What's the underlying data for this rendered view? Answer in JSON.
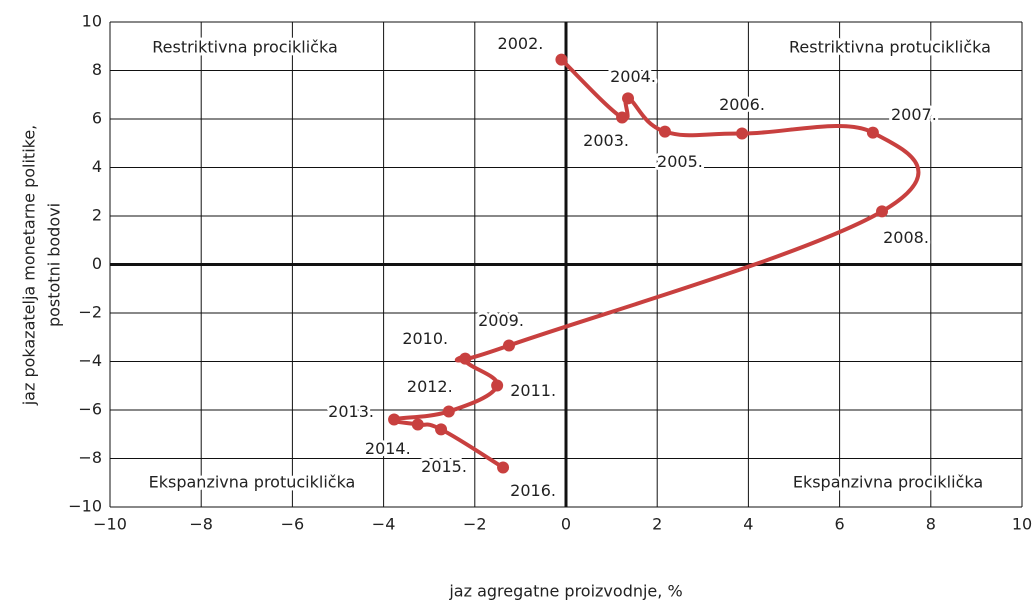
{
  "chart_data": {
    "type": "line",
    "x_label": "jaz agregatne proizvodnje, %",
    "y_label": [
      "jaz pokazatelja monetarne politike,",
      "postotni bodovi"
    ],
    "series": [
      {
        "color": "#c8403f",
        "x": [
          -0.1,
          1.23,
          1.36,
          2.17,
          3.86,
          6.73,
          6.93,
          -1.25,
          -2.21,
          -1.51,
          -2.57,
          -3.77,
          -3.25,
          -2.74,
          -1.38
        ],
        "values": [
          8.45,
          6.06,
          6.85,
          5.48,
          5.4,
          5.44,
          2.19,
          -3.34,
          -3.88,
          -4.99,
          -6.06,
          -6.39,
          -6.6,
          -6.8,
          -8.37
        ],
        "point_labels": [
          "2002.",
          "2003.",
          "2004.",
          "2005.",
          "2006.",
          "2007.",
          "2008.",
          "2009.",
          "2010.",
          "2011.",
          "2012.",
          "2013.",
          "2014.",
          "2015.",
          "2016."
        ]
      }
    ],
    "annotations": [
      "Restriktivna prociklička",
      "Restriktivna protuciklička",
      "Ekspanzivna protuciklička",
      "Ekspanzivna prociklička"
    ],
    "xlim": [
      -10,
      10
    ],
    "ylim": [
      -10,
      10
    ],
    "xticks": [
      {
        "value": -10,
        "label": "−10"
      },
      {
        "value": -8,
        "label": "−8"
      },
      {
        "value": -6,
        "label": "−6"
      },
      {
        "value": -4,
        "label": "−4"
      },
      {
        "value": -2,
        "label": "−2"
      },
      0,
      2,
      4,
      6,
      8,
      10
    ],
    "yticks": [
      {
        "value": -10,
        "label": "−10"
      },
      {
        "value": -8,
        "label": "−8"
      },
      {
        "value": -6,
        "label": "−6"
      },
      {
        "value": -4,
        "label": "−4"
      },
      {
        "value": -2,
        "label": "−2"
      },
      0,
      2,
      4,
      6,
      8,
      10
    ],
    "grid": true
  }
}
